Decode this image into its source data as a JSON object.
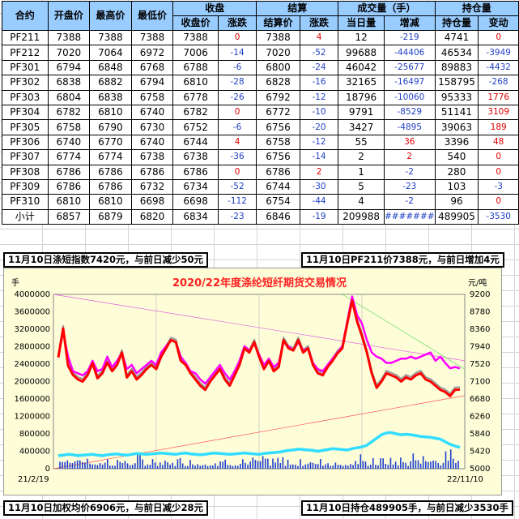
{
  "table": {
    "header_groups": [
      "合约",
      "开盘价",
      "最高价",
      "最低价",
      "收盘",
      "结算",
      "成交量（手）",
      "持仓量"
    ],
    "subheaders": [
      "收盘价",
      "涨跌",
      "结算价",
      "涨跌",
      "当日量",
      "增减",
      "持仓量",
      "变动"
    ],
    "rows": [
      [
        "PF211",
        "7388",
        "7388",
        "7388",
        "7388",
        "0",
        "7388",
        "4",
        "12",
        "-219",
        "4741",
        "0"
      ],
      [
        "PF212",
        "7020",
        "7064",
        "6972",
        "7006",
        "-14",
        "7020",
        "-52",
        "99688",
        "-44406",
        "46534",
        "-3949"
      ],
      [
        "PF301",
        "6794",
        "6848",
        "6768",
        "6788",
        "-6",
        "6800",
        "-24",
        "46042",
        "-25677",
        "89883",
        "-4432"
      ],
      [
        "PF302",
        "6838",
        "6882",
        "6794",
        "6810",
        "-28",
        "6828",
        "-16",
        "32165",
        "-16497",
        "158795",
        "-268"
      ],
      [
        "PF303",
        "6804",
        "6838",
        "6758",
        "6778",
        "-26",
        "6792",
        "-12",
        "18796",
        "-10060",
        "95333",
        "1776"
      ],
      [
        "PF304",
        "6782",
        "6810",
        "6740",
        "6782",
        "0",
        "6772",
        "-10",
        "9791",
        "-8529",
        "51141",
        "3109"
      ],
      [
        "PF305",
        "6758",
        "6790",
        "6730",
        "6752",
        "-6",
        "6756",
        "-20",
        "3427",
        "-4895",
        "39063",
        "189"
      ],
      [
        "PF306",
        "6740",
        "6770",
        "6740",
        "6744",
        "4",
        "6758",
        "-12",
        "55",
        "36",
        "3396",
        "48"
      ],
      [
        "PF307",
        "6774",
        "6774",
        "6738",
        "6738",
        "-36",
        "6756",
        "-14",
        "2",
        "2",
        "540",
        "0"
      ],
      [
        "PF308",
        "6786",
        "6786",
        "6786",
        "6786",
        "0",
        "6786",
        "2",
        "1",
        "-2",
        "280",
        "0"
      ],
      [
        "PF309",
        "6786",
        "6786",
        "6732",
        "6734",
        "-52",
        "6744",
        "-30",
        "5",
        "-23",
        "103",
        "-3"
      ],
      [
        "PF310",
        "6810",
        "6810",
        "6698",
        "6698",
        "-112",
        "6754",
        "-44",
        "4",
        "-2",
        "96",
        "0"
      ],
      [
        "小计",
        "6857",
        "6879",
        "6820",
        "6834",
        "-23",
        "6846",
        "-19",
        "209988",
        "#######",
        "489905",
        "-3530"
      ]
    ]
  },
  "banners": {
    "top_left": "11月10日涤短指数7420元，与前日减少50元",
    "top_right": "11月10日PF211价7388元，与前日增加4元",
    "bottom_left": "11月10日加权均价6906元，与前日减少28元",
    "bottom_right": "11月10日持仓489905手，与前日减少3530手"
  },
  "chart_data": {
    "type": "line",
    "title": "2020/22年度涤纶短纤期货交易情况",
    "ylabel_left": "手",
    "ylabel_right": "元/吨",
    "y_left_ticks": [
      "4000000",
      "3600000",
      "3200000",
      "2800000",
      "2400000",
      "2000000",
      "1600000",
      "1200000",
      "800000",
      "400000",
      "0"
    ],
    "y_right_ticks": [
      "9200",
      "8780",
      "8360",
      "7940",
      "7520",
      "7100",
      "6680",
      "6260",
      "5840",
      "5420",
      "5000"
    ],
    "x_ticks": [
      "21/2/19",
      "22/11/10"
    ],
    "ylim_left": [
      0,
      4000000
    ],
    "ylim_right": [
      5000,
      9200
    ],
    "series_colors": {
      "settle": "#ff0000",
      "index": "#ff00ff",
      "avg": "#999999",
      "oi": "#33ddff",
      "vol": "#1f3fd0"
    },
    "red_price": [
      7680,
      8380,
      7480,
      7260,
      7150,
      7100,
      7260,
      7540,
      7180,
      7300,
      7560,
      7350,
      7500,
      7800,
      7200,
      7350,
      7150,
      7260,
      7400,
      7500,
      7400,
      7700,
      7900,
      8100,
      8050,
      7600,
      7500,
      7300,
      7150,
      7000,
      6900,
      7100,
      7250,
      7400,
      7150,
      7000,
      7250,
      7500,
      7900,
      7800,
      8050,
      7700,
      7400,
      7600,
      7350,
      7450,
      8100,
      7900,
      7850,
      8100,
      7800,
      7900,
      7500,
      7300,
      7250,
      7450,
      7600,
      7780,
      7900,
      8500,
      9050,
      8550,
      8200,
      7800,
      7300,
      6950,
      7100,
      7300,
      7250,
      7200,
      7100,
      7200,
      7150,
      7250,
      7300,
      7150,
      7100,
      7000,
      6900,
      6850,
      6750,
      6900,
      6906
    ],
    "index_price": [
      7700,
      8300,
      7700,
      7350,
      7300,
      7250,
      7350,
      7600,
      7350,
      7400,
      7700,
      7450,
      7600,
      7800,
      7400,
      7500,
      7300,
      7400,
      7500,
      7600,
      7500,
      7800,
      7950,
      8100,
      8050,
      7700,
      7550,
      7350,
      7300,
      7150,
      7050,
      7200,
      7350,
      7500,
      7300,
      7150,
      7350,
      7600,
      7950,
      7850,
      8000,
      7750,
      7500,
      7650,
      7450,
      7550,
      8050,
      7950,
      7850,
      8050,
      7850,
      7900,
      7550,
      7400,
      7350,
      7500,
      7650,
      7800,
      7950,
      8550,
      9150,
      8700,
      8500,
      8100,
      7800,
      7700,
      7650,
      7550,
      7550,
      7600,
      7650,
      7650,
      7700,
      7650,
      7700,
      7750,
      7800,
      7600,
      7700,
      7550,
      7420,
      7450,
      7420
    ],
    "open_interest": [
      300000,
      310000,
      330000,
      320000,
      300000,
      310000,
      320000,
      330000,
      310000,
      300000,
      320000,
      330000,
      340000,
      320000,
      310000,
      330000,
      350000,
      340000,
      330000,
      340000,
      350000,
      360000,
      350000,
      340000,
      330000,
      350000,
      360000,
      340000,
      330000,
      320000,
      330000,
      350000,
      360000,
      350000,
      340000,
      330000,
      340000,
      350000,
      360000,
      350000,
      340000,
      330000,
      350000,
      360000,
      370000,
      380000,
      400000,
      420000,
      430000,
      450000,
      440000,
      430000,
      420000,
      400000,
      420000,
      440000,
      460000,
      450000,
      440000,
      430000,
      460000,
      480000,
      500000,
      540000,
      620000,
      700000,
      780000,
      820000,
      830000,
      800000,
      780000,
      790000,
      780000,
      760000,
      740000,
      730000,
      720000,
      700000,
      680000,
      620000,
      560000,
      520000,
      489905
    ]
  }
}
